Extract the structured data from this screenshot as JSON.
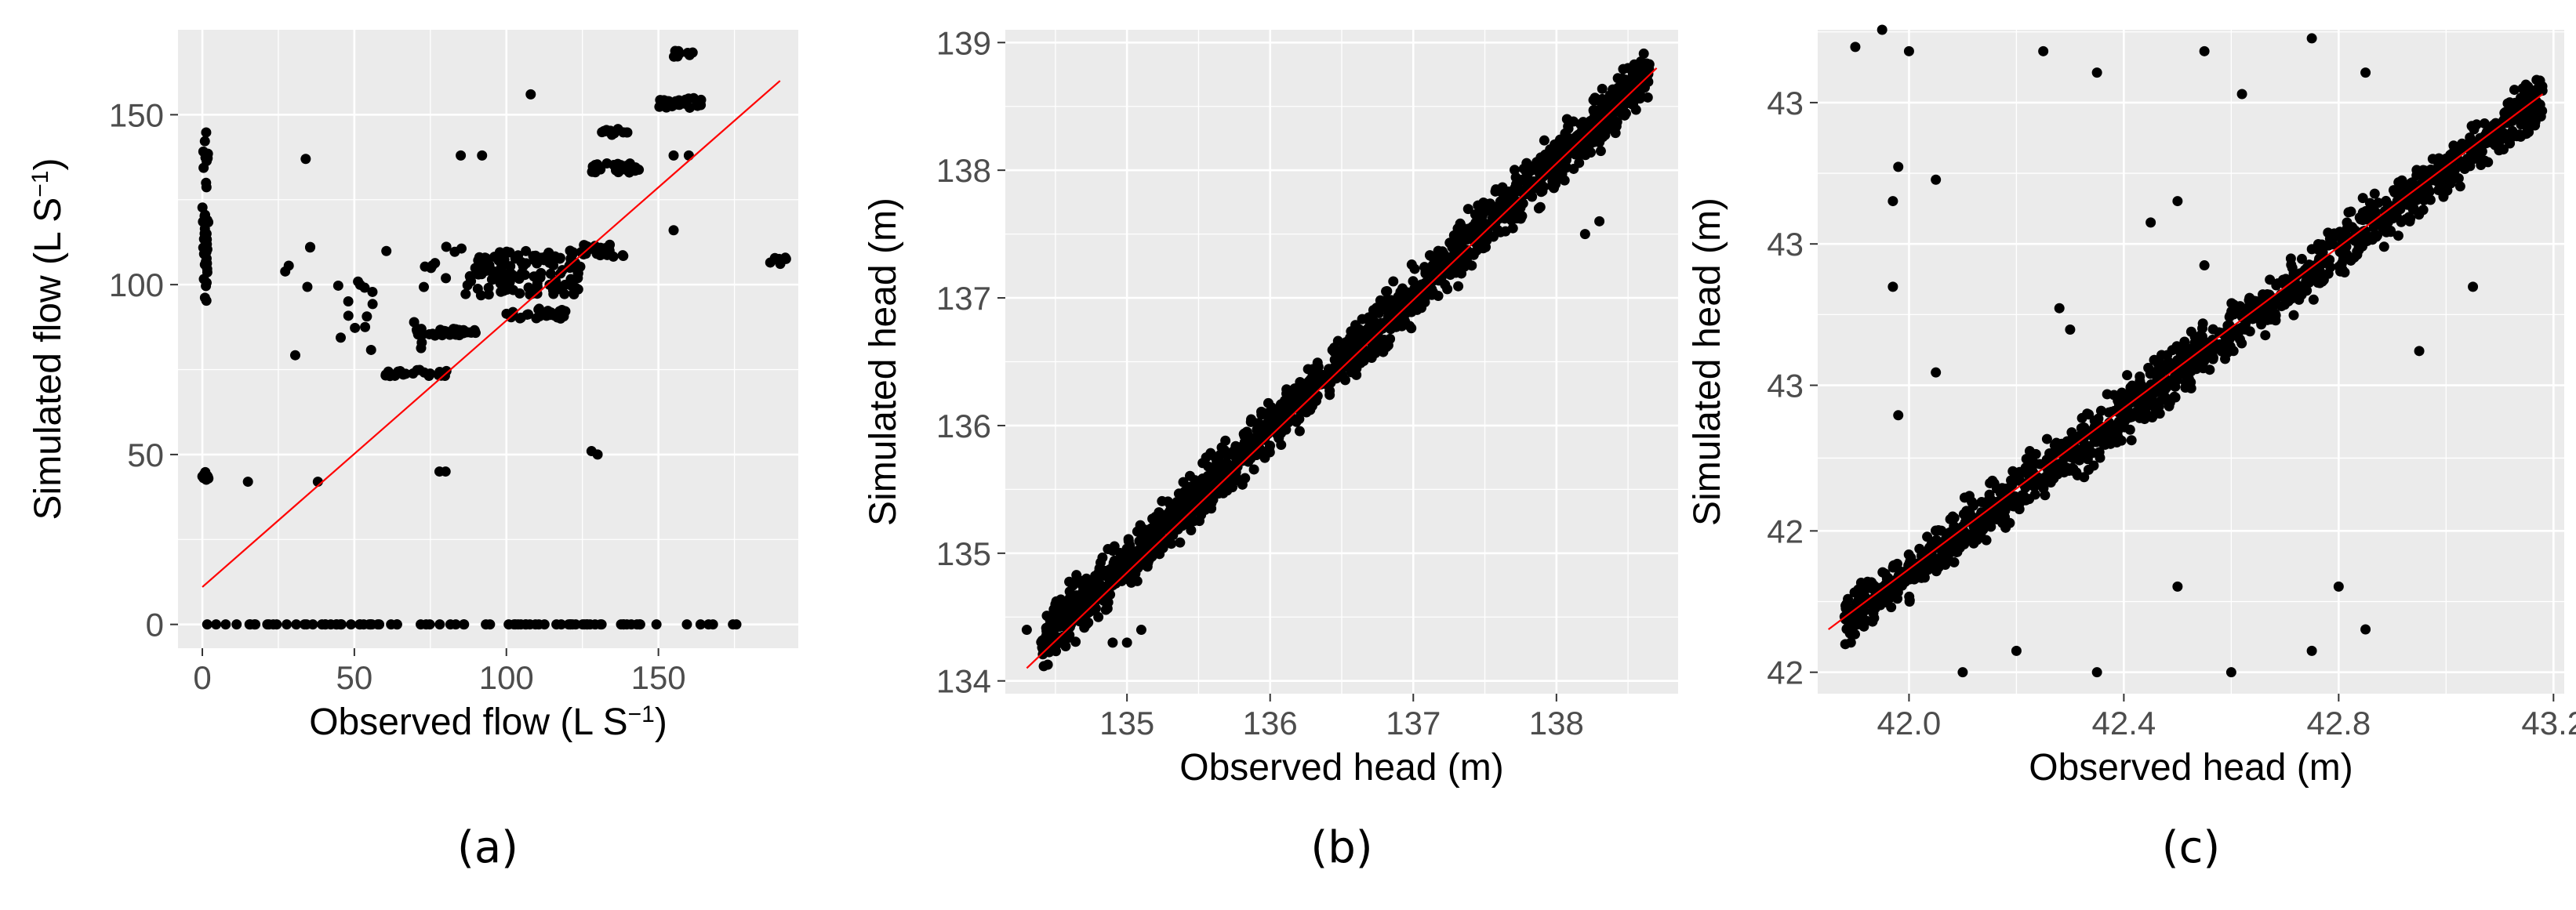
{
  "chart_data": [
    {
      "type": "scatter",
      "panel_label": "(a)",
      "xlabel": "Observed flow (L S",
      "xlabel_sup": "−1",
      "xlabel_end": ")",
      "ylabel": "Simulated flow (L S",
      "ylabel_sup": "−1",
      "ylabel_end": ")",
      "xlim": [
        -8,
        196
      ],
      "ylim": [
        -7,
        175
      ],
      "xticks": [
        0,
        50,
        100,
        150
      ],
      "xtick_labels": [
        "0",
        "50",
        "100",
        "150"
      ],
      "yticks": [
        0,
        50,
        100,
        150
      ],
      "ytick_labels": [
        "0",
        "50",
        "100",
        "150"
      ],
      "grid": true,
      "background": "#ebebeb",
      "point_color": "#000000",
      "line_color": "#ff0000",
      "fit_line": {
        "x": [
          0,
          190
        ],
        "y": [
          11,
          160
        ]
      },
      "clusters": [
        {
          "x": [
            0,
            2
          ],
          "y": [
            95,
            145
          ],
          "n": 40
        },
        {
          "x": [
            0,
            2
          ],
          "y": [
            41,
            45
          ],
          "n": 8
        },
        {
          "x": [
            0,
            180
          ],
          "y": [
            0,
            0
          ],
          "n": 90
        },
        {
          "x": [
            70,
            90
          ],
          "y": [
            85,
            87
          ],
          "n": 40
        },
        {
          "x": [
            60,
            82
          ],
          "y": [
            73,
            75
          ],
          "n": 25
        },
        {
          "x": [
            88,
            125
          ],
          "y": [
            97,
            110
          ],
          "n": 120
        },
        {
          "x": [
            100,
            120
          ],
          "y": [
            90,
            93
          ],
          "n": 30
        },
        {
          "x": [
            125,
            140
          ],
          "y": [
            108,
            112
          ],
          "n": 25
        },
        {
          "x": [
            128,
            145
          ],
          "y": [
            133,
            136
          ],
          "n": 25
        },
        {
          "x": [
            130,
            140
          ],
          "y": [
            144,
            146
          ],
          "n": 12
        },
        {
          "x": [
            150,
            165
          ],
          "y": [
            152,
            155
          ],
          "n": 25
        },
        {
          "x": [
            155,
            162
          ],
          "y": [
            167,
            169
          ],
          "n": 8
        },
        {
          "x": [
            183,
            192
          ],
          "y": [
            106,
            108
          ],
          "n": 6
        },
        {
          "x": [
            25,
            75
          ],
          "y": [
            78,
            112
          ],
          "n": 25
        },
        {
          "x": [
            75,
            100
          ],
          "y": [
            96,
            112
          ],
          "n": 20
        }
      ],
      "points": [
        [
          15,
          42
        ],
        [
          38,
          42
        ],
        [
          34,
          137
        ],
        [
          78,
          45
        ],
        [
          80,
          45
        ],
        [
          85,
          138
        ],
        [
          92,
          138
        ],
        [
          108,
          156
        ],
        [
          128,
          51
        ],
        [
          130,
          50
        ],
        [
          155,
          138
        ],
        [
          160,
          138
        ],
        [
          155,
          116
        ]
      ]
    },
    {
      "type": "scatter",
      "panel_label": "(b)",
      "xlabel": "Observed head (m)",
      "ylabel": "Simulated head (m)",
      "xlim": [
        134.15,
        138.85
      ],
      "ylim": [
        133.9,
        139.1
      ],
      "xticks": [
        135,
        136,
        137,
        138
      ],
      "xtick_labels": [
        "135",
        "136",
        "137",
        "138"
      ],
      "yticks": [
        134,
        135,
        136,
        137,
        138,
        139
      ],
      "ytick_labels": [
        "134",
        "135",
        "136",
        "137",
        "138",
        "139"
      ],
      "grid": true,
      "background": "#ebebeb",
      "point_color": "#000000",
      "line_color": "#ff0000",
      "fit_line": {
        "x": [
          134.3,
          138.7
        ],
        "y": [
          134.1,
          138.8
        ]
      },
      "diagonal_band": {
        "x": [
          134.4,
          138.65
        ],
        "slope": 1.05,
        "intercept_at_start": 134.3,
        "spread": 0.3,
        "n": 1500
      },
      "points": [
        [
          134.3,
          134.4
        ],
        [
          134.5,
          134.6
        ],
        [
          134.6,
          134.7
        ],
        [
          134.9,
          134.3
        ],
        [
          135.0,
          134.3
        ],
        [
          135.1,
          134.4
        ],
        [
          134.8,
          134.5
        ],
        [
          138.2,
          137.5
        ],
        [
          138.3,
          137.6
        ],
        [
          138.5,
          138.8
        ]
      ]
    },
    {
      "type": "scatter",
      "panel_label": "(c)",
      "xlabel": "Observed head (m)",
      "ylabel": "Simulated head (m)",
      "xlim": [
        41.83,
        43.22
      ],
      "ylim": [
        41.95,
        43.5
      ],
      "xticks": [
        42.0,
        42.4,
        42.8,
        43.2
      ],
      "xtick_labels": [
        "42.0",
        "42.4",
        "42.8",
        "43.2"
      ],
      "yticks": [
        42.0,
        42.33,
        42.67,
        43.0,
        43.33
      ],
      "ytick_labels": [
        "42",
        "42",
        "43",
        "43",
        "43"
      ],
      "grid": true,
      "background": "#ebebeb",
      "point_color": "#000000",
      "line_color": "#ff0000",
      "fit_line": {
        "x": [
          41.85,
          43.18
        ],
        "y": [
          42.1,
          43.35
        ]
      },
      "diagonal_band": {
        "x": [
          41.88,
          43.18
        ],
        "slope": 0.94,
        "intercept_at_start": 42.12,
        "spread": 0.09,
        "n": 1300
      },
      "points": [
        [
          41.9,
          43.46
        ],
        [
          41.95,
          43.5
        ],
        [
          42.0,
          43.45
        ],
        [
          41.98,
          43.18
        ],
        [
          41.97,
          43.1
        ],
        [
          42.05,
          43.15
        ],
        [
          41.97,
          42.9
        ],
        [
          41.98,
          42.6
        ],
        [
          42.05,
          42.7
        ],
        [
          42.25,
          43.45
        ],
        [
          42.35,
          43.4
        ],
        [
          42.55,
          43.45
        ],
        [
          42.62,
          43.35
        ],
        [
          42.75,
          43.48
        ],
        [
          42.85,
          43.4
        ],
        [
          42.45,
          43.05
        ],
        [
          42.5,
          43.1
        ],
        [
          42.3,
          42.8
        ],
        [
          42.5,
          42.2
        ],
        [
          42.6,
          42.0
        ],
        [
          42.75,
          42.05
        ],
        [
          42.8,
          42.2
        ],
        [
          42.35,
          42.0
        ],
        [
          42.2,
          42.05
        ],
        [
          42.1,
          42.0
        ],
        [
          42.95,
          42.75
        ],
        [
          43.05,
          42.9
        ],
        [
          42.85,
          42.1
        ],
        [
          42.55,
          42.95
        ],
        [
          42.28,
          42.85
        ]
      ]
    }
  ]
}
